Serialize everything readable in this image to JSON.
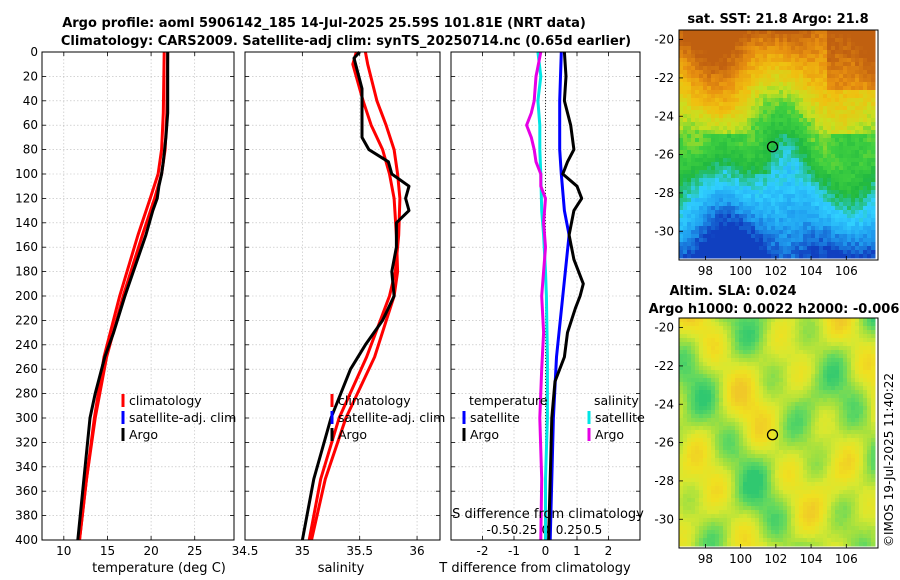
{
  "title": {
    "line1": "Argo profile: aoml 5906142_185 14-Jul-2025 25.59S 101.81E (NRT data)",
    "line2": "Climatology: CARS2009. Satellite-adj clim: synTS_20250714.nc (0.65d earlier)"
  },
  "colors": {
    "climatology": "#ff0000",
    "satellite": "#0000ff",
    "argo": "#000000",
    "sat_diff_salinity": "#00e5e5",
    "argo_diff_salinity": "#e600e6"
  },
  "chart_data": [
    {
      "type": "line",
      "name": "temperature",
      "xlabel": "temperature (deg C)",
      "ylabel": "",
      "xlim": [
        7.5,
        29.5
      ],
      "ylim": [
        400,
        0
      ],
      "xticks": [
        10,
        15,
        20,
        25
      ],
      "yticks": [
        0,
        20,
        40,
        60,
        80,
        100,
        120,
        140,
        160,
        180,
        200,
        220,
        240,
        260,
        280,
        300,
        320,
        340,
        360,
        380,
        400
      ],
      "grid": true,
      "legend": [
        "climatology",
        "satellite-adj. clim",
        "Argo"
      ],
      "series": [
        {
          "name": "climatology",
          "depth": [
            0,
            50,
            80,
            100,
            120,
            150,
            200,
            250,
            300,
            350,
            400
          ],
          "values": [
            21.5,
            21.4,
            21.2,
            20.8,
            19.9,
            18.5,
            16.4,
            14.6,
            13.5,
            12.6,
            11.8
          ]
        },
        {
          "name": "satellite-adj. clim",
          "depth": [
            0,
            50,
            80,
            100,
            120,
            150,
            200,
            250,
            300,
            350,
            400
          ],
          "values": [
            21.9,
            21.8,
            21.6,
            21.2,
            20.4,
            19.0,
            16.8,
            14.9,
            13.6,
            12.6,
            11.8
          ]
        },
        {
          "name": "Argo",
          "depth": [
            0,
            50,
            70,
            90,
            100,
            110,
            120,
            130,
            150,
            200,
            230,
            250,
            280,
            300,
            350,
            400
          ],
          "values": [
            21.9,
            21.9,
            21.7,
            21.4,
            21.2,
            20.9,
            20.7,
            20.2,
            19.4,
            17.0,
            15.7,
            14.7,
            13.6,
            13.0,
            12.3,
            11.6
          ]
        }
      ]
    },
    {
      "type": "line",
      "name": "salinity",
      "xlabel": "salinity",
      "ylabel": "",
      "xlim": [
        34.5,
        36.2
      ],
      "ylim": [
        400,
        0
      ],
      "xticks": [
        34.5,
        35,
        35.5,
        36
      ],
      "grid": true,
      "legend": [
        "climatology",
        "satellite-adj. clim",
        "Argo"
      ],
      "series": [
        {
          "name": "climatology",
          "depth": [
            0,
            10,
            40,
            60,
            80,
            100,
            120,
            150,
            180,
            200,
            250,
            300,
            350,
            400
          ],
          "values": [
            35.55,
            35.57,
            35.65,
            35.73,
            35.8,
            35.83,
            35.85,
            35.84,
            35.81,
            35.76,
            35.56,
            35.32,
            35.16,
            35.06
          ]
        },
        {
          "name": "satellite-adj. clim",
          "depth": [
            0,
            10,
            40,
            60,
            80,
            100,
            120,
            150,
            180,
            200,
            250,
            300,
            350,
            400
          ],
          "values": [
            35.47,
            35.44,
            35.53,
            35.6,
            35.7,
            35.76,
            35.8,
            35.82,
            35.83,
            35.8,
            35.63,
            35.38,
            35.2,
            35.08
          ]
        },
        {
          "name": "Argo",
          "depth": [
            0,
            5,
            30,
            50,
            70,
            80,
            90,
            100,
            110,
            120,
            130,
            140,
            160,
            180,
            200,
            220,
            240,
            260,
            300,
            350,
            400
          ],
          "values": [
            35.5,
            35.45,
            35.52,
            35.52,
            35.52,
            35.58,
            35.75,
            35.78,
            35.93,
            35.9,
            35.93,
            35.82,
            35.82,
            35.78,
            35.8,
            35.7,
            35.55,
            35.42,
            35.25,
            35.1,
            35.0
          ]
        }
      ]
    },
    {
      "type": "line",
      "name": "difference from climatology",
      "xlabel": "T difference from climatology",
      "x2label": "S difference from climatology",
      "xlim": [
        -3,
        3
      ],
      "x2lim": [
        -1,
        1
      ],
      "ylim": [
        400,
        0
      ],
      "xticks": [
        -2,
        -1,
        0,
        1,
        2
      ],
      "xticklabels": [
        "-2",
        "-1",
        "0",
        "1",
        "2"
      ],
      "x2ticks": [
        -0.5,
        -0.25,
        0,
        0.25,
        0.5
      ],
      "x2ticklabels": [
        "-0.5",
        "-0.25",
        "0",
        "0.25",
        "0.5"
      ],
      "grid": true,
      "legend_temperature": {
        "header": "temperature",
        "items": [
          "satellite",
          "Argo"
        ]
      },
      "legend_salinity": {
        "header": "salinity",
        "items": [
          "satellite",
          "Argo"
        ]
      },
      "series": [
        {
          "name": "T satellite",
          "axis": "T",
          "depth": [
            0,
            40,
            80,
            100,
            130,
            150,
            200,
            250,
            300,
            350,
            400
          ],
          "values": [
            0.5,
            0.45,
            0.45,
            0.5,
            0.6,
            0.75,
            0.55,
            0.35,
            0.25,
            0.2,
            0.15
          ]
        },
        {
          "name": "T Argo",
          "axis": "T",
          "depth": [
            0,
            20,
            40,
            60,
            80,
            90,
            100,
            110,
            120,
            130,
            150,
            170,
            190,
            200,
            210,
            230,
            250,
            270,
            300,
            350,
            400
          ],
          "values": [
            0.6,
            0.65,
            0.6,
            0.8,
            0.9,
            0.7,
            0.55,
            1.0,
            1.15,
            0.9,
            0.75,
            0.9,
            1.2,
            1.1,
            0.95,
            0.7,
            0.6,
            0.3,
            0.2,
            0.15,
            0.1
          ]
        },
        {
          "name": "S satellite",
          "axis": "S",
          "depth": [
            0,
            20,
            40,
            60,
            80,
            100,
            130,
            150,
            180,
            200,
            250,
            300,
            350,
            400
          ],
          "values": [
            -0.08,
            -0.05,
            -0.08,
            -0.06,
            -0.06,
            -0.05,
            -0.04,
            -0.02,
            0.0,
            0.01,
            0.02,
            0.02,
            0.0,
            0.0
          ]
        },
        {
          "name": "S Argo",
          "axis": "S",
          "depth": [
            0,
            20,
            40,
            50,
            60,
            70,
            80,
            90,
            100,
            110,
            120,
            140,
            160,
            180,
            200,
            230,
            260,
            300,
            350,
            400
          ],
          "values": [
            -0.05,
            -0.1,
            -0.12,
            -0.15,
            -0.2,
            -0.15,
            -0.12,
            -0.1,
            -0.05,
            -0.05,
            0.0,
            -0.02,
            0.0,
            -0.02,
            -0.04,
            -0.02,
            -0.04,
            -0.06,
            -0.04,
            -0.05
          ]
        }
      ]
    },
    {
      "type": "heatmap",
      "name": "satellite SST map",
      "title": "sat. SST: 21.8 Argo: 21.8",
      "xlim": [
        96.5,
        107.8
      ],
      "ylim": [
        -31.5,
        -19.5
      ],
      "xticks": [
        98,
        100,
        102,
        104,
        106
      ],
      "yticks": [
        -20,
        -22,
        -24,
        -26,
        -28,
        -30
      ],
      "marker": {
        "lon": 101.81,
        "lat": -25.59
      },
      "palette": [
        "#1040c0",
        "#20a0f0",
        "#30d0ff",
        "#20b840",
        "#40d040",
        "#c8e020",
        "#f0c010",
        "#e89010",
        "#c06010"
      ]
    },
    {
      "type": "heatmap",
      "name": "altimetry SLA map",
      "title_line1": "Altim. SLA: 0.024",
      "title_line2": "Argo h1000: 0.0022 h2000: -0.006",
      "xlim": [
        96.5,
        107.8
      ],
      "ylim": [
        -31.5,
        -19.5
      ],
      "xticks": [
        98,
        100,
        102,
        104,
        106
      ],
      "yticks": [
        -20,
        -22,
        -24,
        -26,
        -28,
        -30
      ],
      "marker": {
        "lon": 101.81,
        "lat": -25.59
      },
      "palette": [
        "#30c870",
        "#60d860",
        "#a0e040",
        "#d8e830",
        "#f0e020",
        "#f0c828"
      ]
    }
  ],
  "credit": "©IMOS 19-Jul-2025 11:40:22"
}
